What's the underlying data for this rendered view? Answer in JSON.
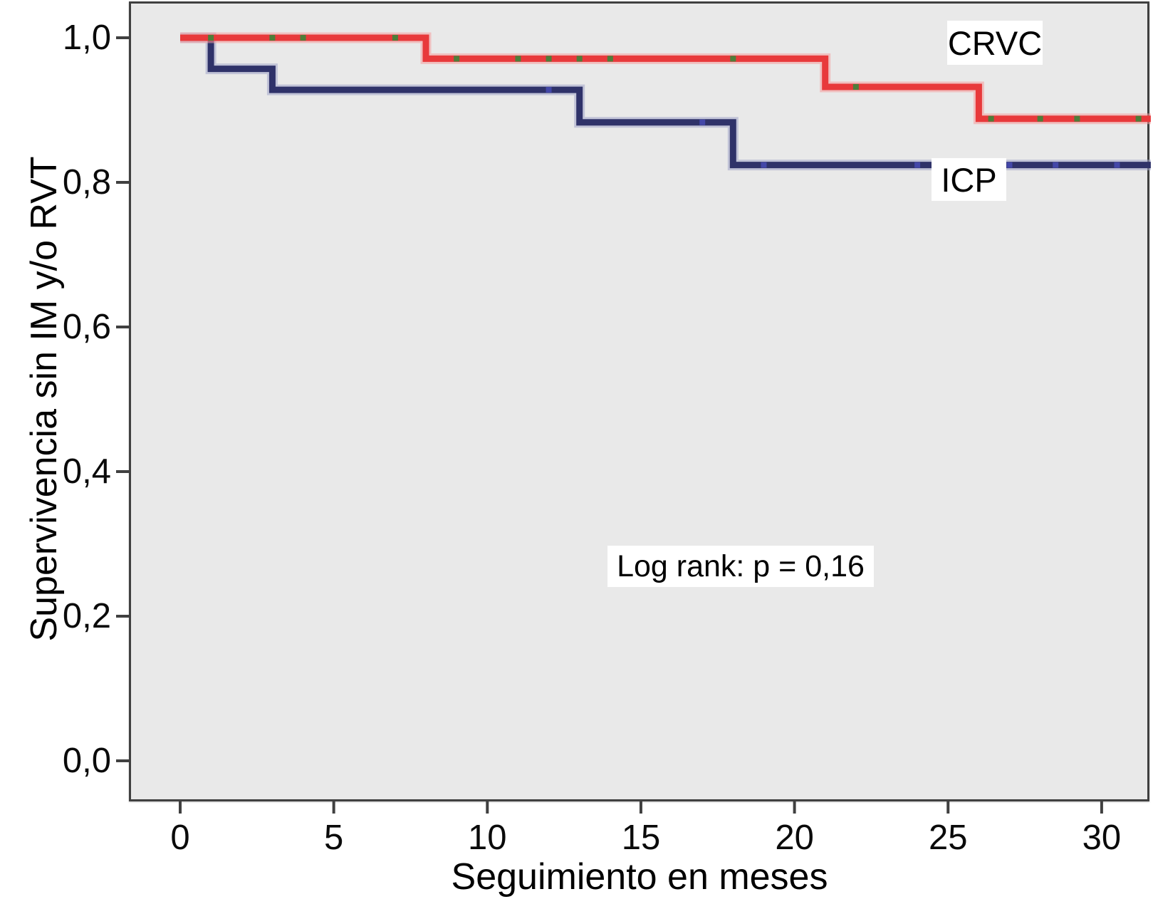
{
  "figure": {
    "y_axis_title": "Supervivencia sin IM y/o RVT",
    "x_axis_title": "Seguimiento en meses",
    "annotation_text": "Log rank: p = 0,16",
    "crvc_label": "CRVC",
    "icp_label": "ICP"
  },
  "colors": {
    "plot_background": "#e9e9e9",
    "axis_line": "#404040",
    "tick_text": "#0a0a0a",
    "crvc_line": "#e8393b",
    "crvc_halo": "#f59c9d",
    "crvc_censor_mark": "#4e7d3a",
    "icp_line": "#2f3269",
    "icp_halo": "#a0a4c9",
    "icp_censor_mark": "#4347a8"
  },
  "chart_data": {
    "type": "line",
    "subtype": "kaplan-meier-step-survival",
    "title": "",
    "xlabel": "Seguimiento en meses",
    "ylabel": "Supervivencia sin IM y/o RVT",
    "xlim": [
      -1.62,
      31.6
    ],
    "ylim": [
      -0.054,
      1.049
    ],
    "grid": false,
    "legend_position": "inline-labels",
    "x_ticks": [
      0,
      5,
      10,
      15,
      20,
      25,
      30
    ],
    "x_tick_labels": [
      "0",
      "5",
      "10",
      "15",
      "20",
      "25",
      "30"
    ],
    "y_ticks": [
      0.0,
      0.2,
      0.4,
      0.6,
      0.8,
      1.0
    ],
    "y_tick_labels": [
      "0,0",
      "0,2",
      "0,4",
      "0,6",
      "0,8",
      "1,0"
    ],
    "annotation": {
      "text": "Log rank: p = 0,16",
      "x": 14.5,
      "y": 0.27
    },
    "series": [
      {
        "name": "ICP",
        "steps": [
          [
            0,
            1.0
          ],
          [
            1,
            0.957
          ],
          [
            3,
            0.928
          ],
          [
            13,
            0.883
          ],
          [
            18,
            0.824
          ]
        ],
        "end_x": 31.6,
        "censor_x": [
          12,
          17,
          19,
          24,
          27,
          28.5,
          30.5
        ]
      },
      {
        "name": "CRVC",
        "steps": [
          [
            0,
            1.0
          ],
          [
            8,
            0.971
          ],
          [
            21,
            0.932
          ],
          [
            26,
            0.888
          ]
        ],
        "end_x": 31.6,
        "censor_x": [
          1,
          3,
          4,
          7,
          9,
          11,
          12,
          13,
          14,
          18,
          22,
          26.4,
          28,
          29.2,
          31.2
        ]
      }
    ]
  }
}
